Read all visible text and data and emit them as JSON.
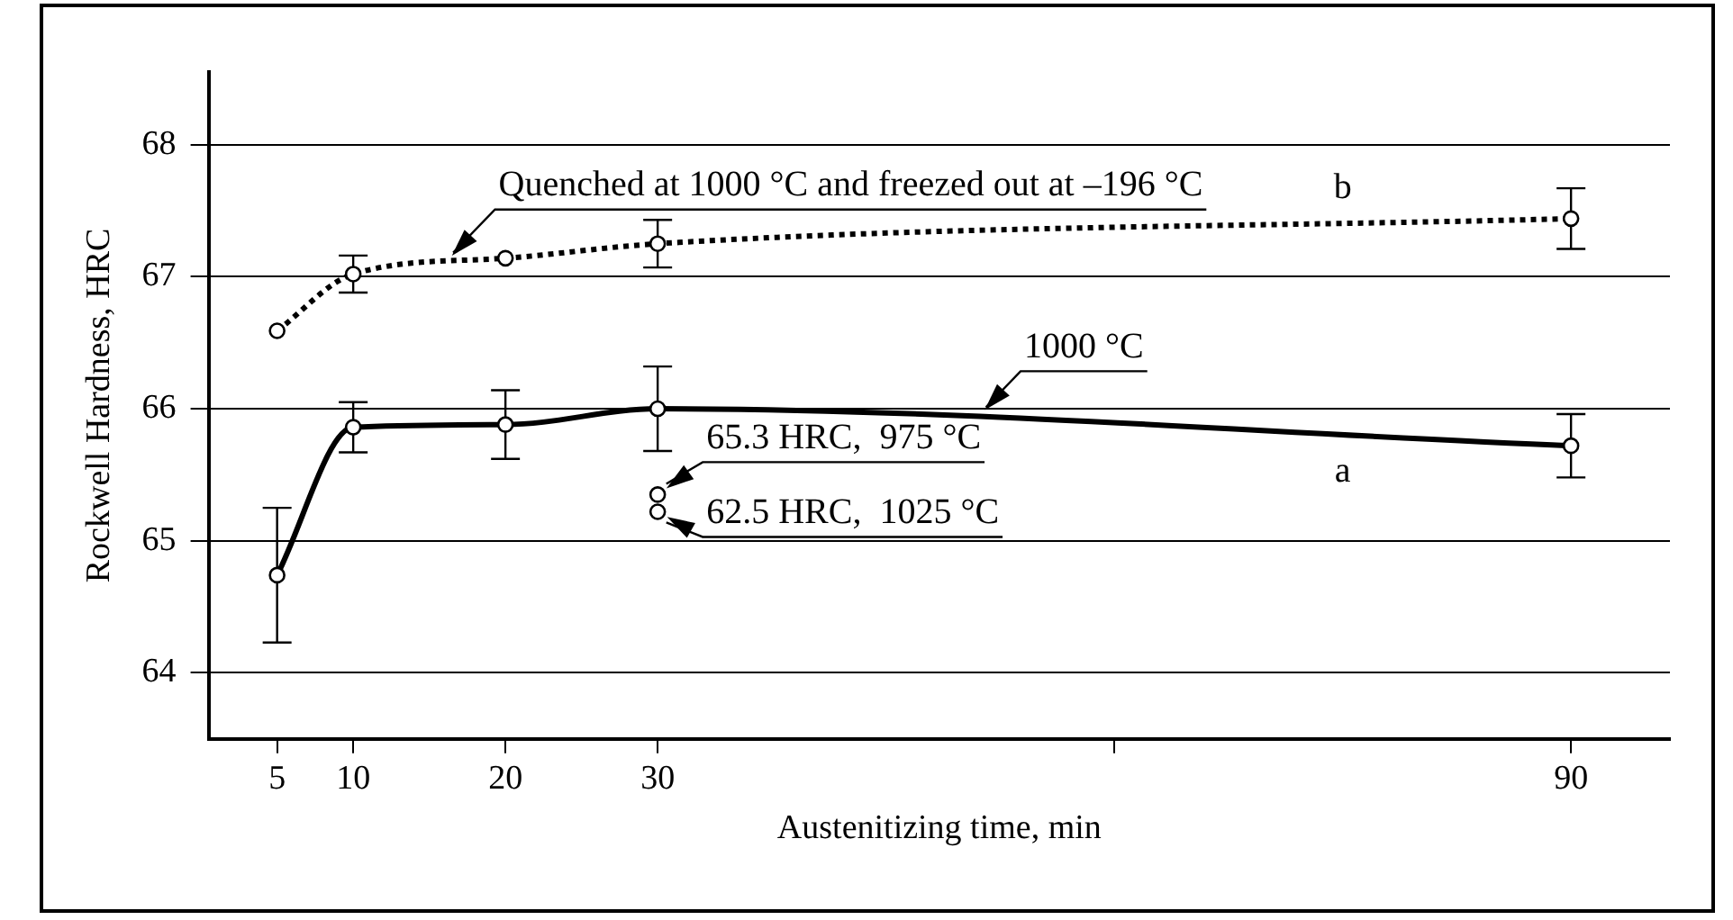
{
  "chart_data": {
    "type": "line",
    "xlabel": "Austenitizing time, min",
    "ylabel": "Rockwell Hardness, HRC",
    "x": [
      5,
      10,
      20,
      30,
      90
    ],
    "series": [
      {
        "name": "b",
        "color": "#000000",
        "line_style": "dotted",
        "values": [
          66.59,
          67.02,
          67.14,
          67.25,
          67.44
        ],
        "errors": [
          null,
          0.14,
          null,
          0.18,
          0.23
        ]
      },
      {
        "name": "a",
        "color": "#000000",
        "line_style": "solid",
        "values": [
          64.74,
          65.86,
          65.88,
          66.0,
          65.72
        ],
        "errors": [
          0.51,
          0.19,
          0.26,
          0.32,
          0.24
        ]
      },
      {
        "type": "scatter",
        "color": "#000000",
        "x": [
          30,
          30
        ],
        "values": [
          65.35,
          65.22
        ]
      }
    ],
    "xlim": [
      0.5,
      96.5
    ],
    "xticks": [
      5,
      10,
      20,
      30,
      {
        "value": 60,
        "label": null
      },
      90
    ],
    "ylim": [
      63.5,
      68.55
    ],
    "yticks": [
      64,
      65,
      66,
      67,
      68
    ],
    "grid": "y",
    "legend": false,
    "marker": "circle",
    "annotations": [
      {
        "text": "Quenched at 1000 °C and freezed out at –196 °C",
        "x": 16,
        "y": 67.1
      },
      {
        "text": "1000 °C",
        "x": 51,
        "y": 65.93
      },
      {
        "text": "65.3 HRC,  975 °C",
        "x": 30,
        "y": 65.35
      },
      {
        "text": "62.5 HRC,  1025 °C",
        "x": 30,
        "y": 65.22
      }
    ]
  }
}
